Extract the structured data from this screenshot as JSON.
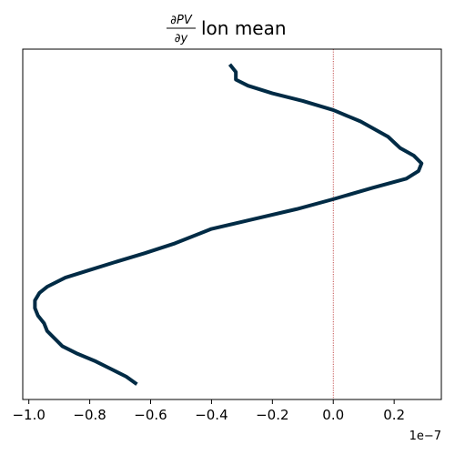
{
  "chart_data": {
    "type": "line",
    "title": {
      "frac_numerator": "∂PV",
      "frac_denominator": "∂y",
      "text": "lon mean"
    },
    "xlabel": "",
    "ylabel": "",
    "x_offset_label": "1e−7",
    "x_scale": 1e-07,
    "xlim": [
      -1.02,
      0.355
    ],
    "ylim": [
      0,
      46
    ],
    "x_ticks": [
      -1.0,
      -0.8,
      -0.6,
      -0.4,
      -0.2,
      0.0,
      0.2
    ],
    "x_tick_labels": [
      "−1.0",
      "−0.8",
      "−0.6",
      "−0.4",
      "−0.2",
      "0.0",
      "0.2"
    ],
    "y_ticks_visible": false,
    "grid": false,
    "reference_line": {
      "x": 0.0,
      "color": "#b22222",
      "style": "dotted"
    },
    "series": [
      {
        "color": "#002b45",
        "x": [
          -0.645,
          -0.68,
          -0.73,
          -0.78,
          -0.84,
          -0.89,
          -0.915,
          -0.94,
          -0.95,
          -0.97,
          -0.98,
          -0.98,
          -0.965,
          -0.94,
          -0.88,
          -0.8,
          -0.72,
          -0.62,
          -0.52,
          -0.4,
          -0.27,
          -0.12,
          0.0,
          0.13,
          0.24,
          0.28,
          0.29,
          0.265,
          0.22,
          0.18,
          0.09,
          0.0,
          -0.1,
          -0.2,
          -0.28,
          -0.32,
          -0.32,
          -0.34
        ],
        "y": [
          2,
          3,
          4,
          5,
          6,
          7,
          8,
          9,
          10,
          11,
          12,
          13,
          14,
          14.8,
          16,
          17,
          18,
          19.2,
          20.5,
          22.4,
          23.6,
          25,
          26.3,
          27.8,
          29,
          30,
          31,
          32,
          33,
          34.5,
          36.5,
          38,
          39.2,
          40.2,
          41.2,
          42,
          43,
          44
        ]
      }
    ]
  }
}
